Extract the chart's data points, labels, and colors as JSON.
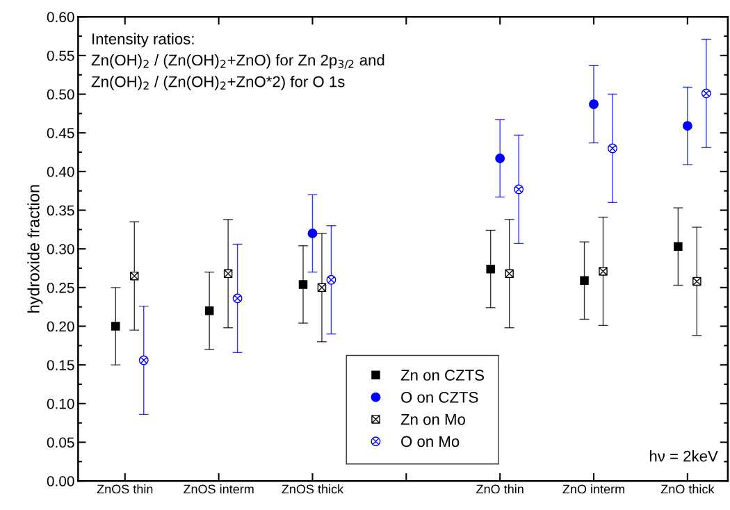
{
  "chart_data": {
    "type": "scatter",
    "ylabel": "hydroxide fraction",
    "categories": [
      "ZnOS thin",
      "ZnOS interm",
      "ZnOS thick",
      null,
      "ZnO thin",
      "ZnO interm",
      "ZnO thick"
    ],
    "ylim": [
      0,
      0.6
    ],
    "yticks": [
      {
        "value": 0,
        "label": "0.00"
      },
      {
        "value": 0.05,
        "label": "0.05"
      },
      {
        "value": 0.1,
        "label": "0.10"
      },
      {
        "value": 0.15,
        "label": "0.15"
      },
      {
        "value": 0.2,
        "label": "0.20"
      },
      {
        "value": 0.25,
        "label": "0.25"
      },
      {
        "value": 0.3,
        "label": "0.30"
      },
      {
        "value": 0.35,
        "label": "0.35"
      },
      {
        "value": 0.4,
        "label": "0.40"
      },
      {
        "value": 0.45,
        "label": "0.45"
      },
      {
        "value": 0.5,
        "label": "0.50"
      },
      {
        "value": 0.55,
        "label": "0.55"
      },
      {
        "value": 0.6,
        "label": "0.60"
      }
    ],
    "grid": false,
    "legend": "bottom",
    "series": [
      {
        "name": "Zn on CZTS",
        "color": "#000000",
        "marker": "square",
        "values": [
          0.2,
          0.22,
          0.254,
          null,
          0.274,
          0.259,
          0.303
        ],
        "errors": [
          0.05,
          0.05,
          0.05,
          null,
          0.05,
          0.05,
          0.05
        ]
      },
      {
        "name": "O on CZTS",
        "color": "#0000ff",
        "marker": "circle",
        "values": [
          null,
          null,
          0.32,
          null,
          0.417,
          0.487,
          0.459
        ],
        "errors": [
          null,
          null,
          0.05,
          null,
          0.05,
          0.05,
          0.05
        ]
      },
      {
        "name": "Zn on Mo",
        "color": "#000000",
        "marker": "cross",
        "values": [
          0.265,
          0.268,
          0.25,
          null,
          0.268,
          0.271,
          0.258
        ],
        "errors": [
          0.07,
          0.07,
          0.07,
          null,
          0.07,
          0.07,
          0.07
        ]
      },
      {
        "name": "O on Mo",
        "color": "#0000ff",
        "marker": "cross",
        "values": [
          0.156,
          0.236,
          0.26,
          null,
          0.377,
          0.43,
          0.501
        ],
        "errors": [
          0.07,
          0.07,
          0.07,
          null,
          0.07,
          0.07,
          0.07
        ]
      }
    ],
    "annotations": [
      "Intensity ratios:\nZn(OH)$_{2}$ / (Zn(OH)$_{2}$+ZnO) for Zn 2p$_{3/2}$ and\nZn(OH)$_{2}$ / (Zn(OH)$_{2}$+ZnO*2) for O 1s",
      "hν = 2keV"
    ]
  }
}
